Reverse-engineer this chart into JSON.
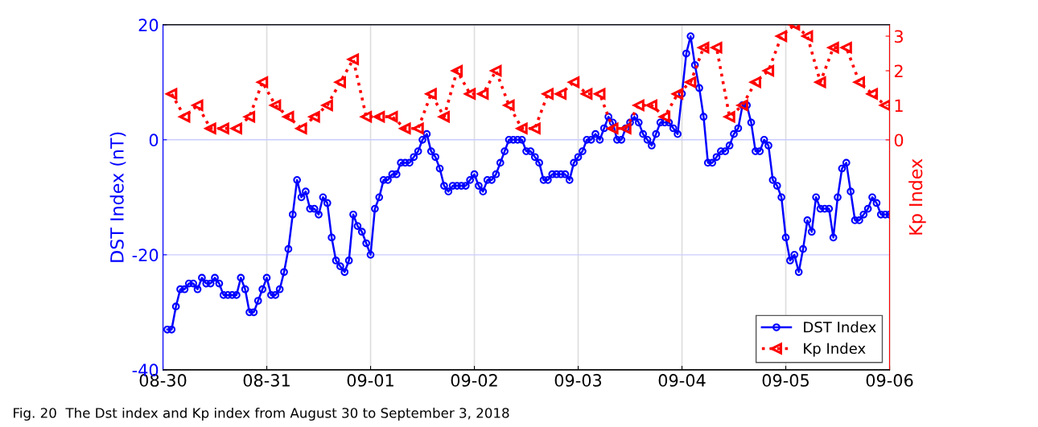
{
  "chart_data": {
    "type": "line",
    "ylabel": "DST Index (nT)",
    "y2label": "Kp Index",
    "annotations": [
      "Fig. 20  The Dst index and Kp index from August 30 to September 3, 2018"
    ],
    "xlim": [
      "2018-08-30",
      "2018-09-06"
    ],
    "xticks": [
      {
        "value": "2018-08-30",
        "label": "08-30"
      },
      {
        "value": "2018-08-31",
        "label": "08-31"
      },
      {
        "value": "2018-09-01",
        "label": "09-01"
      },
      {
        "value": "2018-09-02",
        "label": "09-02"
      },
      {
        "value": "2018-09-03",
        "label": "09-03"
      },
      {
        "value": "2018-09-04",
        "label": "09-04"
      },
      {
        "value": "2018-09-05",
        "label": "09-05"
      },
      {
        "value": "2018-09-06",
        "label": "09-06"
      }
    ],
    "ylim": [
      -40,
      20
    ],
    "yticks": [
      -40,
      -20,
      0,
      20
    ],
    "y2lim": [
      -6.65,
      3.33
    ],
    "y2ticks": [
      0,
      1,
      2,
      3
    ],
    "grid": true,
    "legend": "bottom right",
    "series": [
      {
        "name": "DST Index",
        "color": "#0000ff",
        "marker": "circle",
        "line_style": "solid",
        "x": [
          "2018-08-30T01:00",
          "2018-08-30T02:00",
          "2018-08-30T03:00",
          "2018-08-30T04:00",
          "2018-08-30T05:00",
          "2018-08-30T06:00",
          "2018-08-30T07:00",
          "2018-08-30T08:00",
          "2018-08-30T09:00",
          "2018-08-30T10:00",
          "2018-08-30T11:00",
          "2018-08-30T12:00",
          "2018-08-30T13:00",
          "2018-08-30T14:00",
          "2018-08-30T15:00",
          "2018-08-30T16:00",
          "2018-08-30T17:00",
          "2018-08-30T18:00",
          "2018-08-30T19:00",
          "2018-08-30T20:00",
          "2018-08-30T21:00",
          "2018-08-30T22:00",
          "2018-08-30T23:00",
          "2018-08-31T00:00",
          "2018-08-31T01:00",
          "2018-08-31T02:00",
          "2018-08-31T03:00",
          "2018-08-31T04:00",
          "2018-08-31T05:00",
          "2018-08-31T06:00",
          "2018-08-31T07:00",
          "2018-08-31T08:00",
          "2018-08-31T09:00",
          "2018-08-31T10:00",
          "2018-08-31T11:00",
          "2018-08-31T12:00",
          "2018-08-31T13:00",
          "2018-08-31T14:00",
          "2018-08-31T15:00",
          "2018-08-31T16:00",
          "2018-08-31T17:00",
          "2018-08-31T18:00",
          "2018-08-31T19:00",
          "2018-08-31T20:00",
          "2018-08-31T21:00",
          "2018-08-31T22:00",
          "2018-08-31T23:00",
          "2018-09-01T00:00",
          "2018-09-01T01:00",
          "2018-09-01T02:00",
          "2018-09-01T03:00",
          "2018-09-01T04:00",
          "2018-09-01T05:00",
          "2018-09-01T06:00",
          "2018-09-01T07:00",
          "2018-09-01T08:00",
          "2018-09-01T09:00",
          "2018-09-01T10:00",
          "2018-09-01T11:00",
          "2018-09-01T12:00",
          "2018-09-01T13:00",
          "2018-09-01T14:00",
          "2018-09-01T15:00",
          "2018-09-01T16:00",
          "2018-09-01T17:00",
          "2018-09-01T18:00",
          "2018-09-01T19:00",
          "2018-09-01T20:00",
          "2018-09-01T21:00",
          "2018-09-01T22:00",
          "2018-09-01T23:00",
          "2018-09-02T00:00",
          "2018-09-02T01:00",
          "2018-09-02T02:00",
          "2018-09-02T03:00",
          "2018-09-02T04:00",
          "2018-09-02T05:00",
          "2018-09-02T06:00",
          "2018-09-02T07:00",
          "2018-09-02T08:00",
          "2018-09-02T09:00",
          "2018-09-02T10:00",
          "2018-09-02T11:00",
          "2018-09-02T12:00",
          "2018-09-02T13:00",
          "2018-09-02T14:00",
          "2018-09-02T15:00",
          "2018-09-02T16:00",
          "2018-09-02T17:00",
          "2018-09-02T18:00",
          "2018-09-02T19:00",
          "2018-09-02T20:00",
          "2018-09-02T21:00",
          "2018-09-02T22:00",
          "2018-09-02T23:00",
          "2018-09-03T00:00",
          "2018-09-03T01:00",
          "2018-09-03T02:00",
          "2018-09-03T03:00",
          "2018-09-03T04:00",
          "2018-09-03T05:00",
          "2018-09-03T06:00",
          "2018-09-03T07:00",
          "2018-09-03T08:00",
          "2018-09-03T09:00",
          "2018-09-03T10:00",
          "2018-09-03T11:00",
          "2018-09-03T12:00",
          "2018-09-03T13:00",
          "2018-09-03T14:00",
          "2018-09-03T15:00",
          "2018-09-03T16:00",
          "2018-09-03T17:00",
          "2018-09-03T18:00",
          "2018-09-03T19:00",
          "2018-09-03T20:00",
          "2018-09-03T21:00",
          "2018-09-03T22:00",
          "2018-09-03T23:00",
          "2018-09-04T00:00",
          "2018-09-04T01:00",
          "2018-09-04T02:00",
          "2018-09-04T03:00",
          "2018-09-04T04:00",
          "2018-09-04T05:00",
          "2018-09-04T06:00",
          "2018-09-04T07:00",
          "2018-09-04T08:00",
          "2018-09-04T09:00",
          "2018-09-04T10:00",
          "2018-09-04T11:00",
          "2018-09-04T12:00",
          "2018-09-04T13:00",
          "2018-09-04T14:00",
          "2018-09-04T15:00",
          "2018-09-04T16:00",
          "2018-09-04T17:00",
          "2018-09-04T18:00",
          "2018-09-04T19:00",
          "2018-09-04T20:00",
          "2018-09-04T21:00",
          "2018-09-04T22:00",
          "2018-09-04T23:00",
          "2018-09-05T00:00",
          "2018-09-05T01:00",
          "2018-09-05T02:00",
          "2018-09-05T03:00",
          "2018-09-05T04:00",
          "2018-09-05T05:00",
          "2018-09-05T06:00",
          "2018-09-05T07:00",
          "2018-09-05T08:00",
          "2018-09-05T09:00",
          "2018-09-05T10:00",
          "2018-09-05T11:00",
          "2018-09-05T12:00",
          "2018-09-05T13:00",
          "2018-09-05T14:00",
          "2018-09-05T15:00",
          "2018-09-05T16:00",
          "2018-09-05T17:00",
          "2018-09-05T18:00",
          "2018-09-05T19:00",
          "2018-09-05T20:00",
          "2018-09-05T21:00",
          "2018-09-05T22:00",
          "2018-09-05T23:00",
          "2018-09-06T00:00"
        ],
        "values": [
          -33,
          -33,
          -29,
          -26,
          -26,
          -25,
          -25,
          -26,
          -24,
          -25,
          -25,
          -24,
          -25,
          -27,
          -27,
          -27,
          -27,
          -24,
          -26,
          -30,
          -30,
          -28,
          -26,
          -24,
          -27,
          -27,
          -26,
          -23,
          -19,
          -13,
          -7,
          -10,
          -9,
          -12,
          -12,
          -13,
          -10,
          -11,
          -17,
          -21,
          -22,
          -23,
          -21,
          -13,
          -15,
          -16,
          -18,
          -20,
          -12,
          -10,
          -7,
          -7,
          -6,
          -6,
          -4,
          -4,
          -4,
          -3,
          -2,
          0,
          1,
          -2,
          -3,
          -5,
          -8,
          -9,
          -8,
          -8,
          -8,
          -8,
          -7,
          -6,
          -8,
          -9,
          -7,
          -7,
          -6,
          -4,
          -2,
          0,
          0,
          0,
          0,
          -2,
          -2,
          -3,
          -4,
          -7,
          -7,
          -6,
          -6,
          -6,
          -6,
          -7,
          -4,
          -3,
          -2,
          0,
          0,
          1,
          0,
          2,
          4,
          3,
          0,
          0,
          2,
          3,
          4,
          3,
          1,
          0,
          -1,
          1,
          3,
          3,
          3,
          2,
          1,
          8,
          15,
          18,
          13,
          9,
          4,
          -4,
          -4,
          -3,
          -2,
          -2,
          -1,
          1,
          2,
          6,
          6,
          3,
          -2,
          -2,
          0,
          -1,
          -7,
          -8,
          -10,
          -17,
          -21,
          -20,
          -23,
          -19,
          -14,
          -16,
          -10,
          -12,
          -12,
          -12,
          -17,
          -10,
          -5,
          -4,
          -9,
          -14,
          -14,
          -13,
          -12,
          -10,
          -11,
          -13,
          -13,
          -13
        ]
      },
      {
        "name": "Kp Index",
        "color": "#ff0000",
        "marker": "triangle",
        "line_style": "dotted",
        "axis": "y2",
        "x": [
          "2018-08-30T02:00",
          "2018-08-30T05:00",
          "2018-08-30T08:00",
          "2018-08-30T11:00",
          "2018-08-30T14:00",
          "2018-08-30T17:00",
          "2018-08-30T20:00",
          "2018-08-30T23:00",
          "2018-08-31T02:00",
          "2018-08-31T05:00",
          "2018-08-31T08:00",
          "2018-08-31T11:00",
          "2018-08-31T14:00",
          "2018-08-31T17:00",
          "2018-08-31T20:00",
          "2018-08-31T23:00",
          "2018-09-01T02:00",
          "2018-09-01T05:00",
          "2018-09-01T08:00",
          "2018-09-01T11:00",
          "2018-09-01T14:00",
          "2018-09-01T17:00",
          "2018-09-01T20:00",
          "2018-09-01T23:00",
          "2018-09-02T02:00",
          "2018-09-02T05:00",
          "2018-09-02T08:00",
          "2018-09-02T11:00",
          "2018-09-02T14:00",
          "2018-09-02T17:00",
          "2018-09-02T20:00",
          "2018-09-02T23:00",
          "2018-09-03T02:00",
          "2018-09-03T05:00",
          "2018-09-03T08:00",
          "2018-09-03T11:00",
          "2018-09-03T14:00",
          "2018-09-03T17:00",
          "2018-09-03T20:00",
          "2018-09-03T23:00",
          "2018-09-04T02:00",
          "2018-09-04T05:00",
          "2018-09-04T08:00",
          "2018-09-04T11:00",
          "2018-09-04T14:00",
          "2018-09-04T17:00",
          "2018-09-04T20:00",
          "2018-09-04T23:00",
          "2018-09-05T02:00",
          "2018-09-05T05:00",
          "2018-09-05T08:00",
          "2018-09-05T11:00",
          "2018-09-05T14:00",
          "2018-09-05T17:00",
          "2018-09-05T20:00",
          "2018-09-05T23:00"
        ],
        "values": [
          1.33,
          0.67,
          1,
          0.33,
          0.33,
          0.33,
          0.67,
          1.67,
          1,
          0.67,
          0.33,
          0.67,
          1,
          1.67,
          2.33,
          0.67,
          0.67,
          0.67,
          0.33,
          0.33,
          1.33,
          0.67,
          2,
          1.33,
          1.33,
          2,
          1,
          0.33,
          0.33,
          1.33,
          1.33,
          1.67,
          1.33,
          1.33,
          0.33,
          0.33,
          1,
          1,
          0.67,
          1.33,
          1.67,
          2.67,
          2.67,
          0.67,
          1,
          1.67,
          2,
          3,
          3.33,
          3,
          1.67,
          2.67,
          2.67,
          1.67,
          1.33,
          1
        ]
      }
    ]
  }
}
